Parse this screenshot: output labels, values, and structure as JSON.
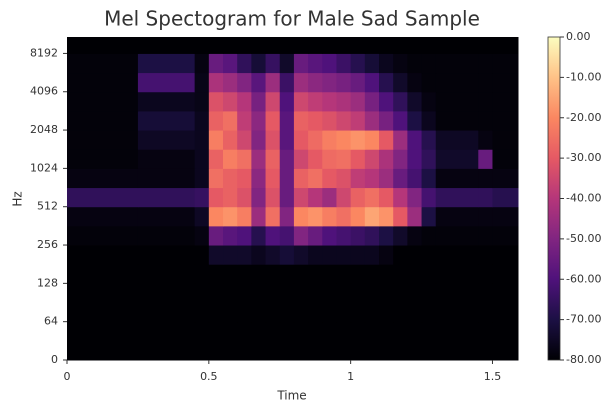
{
  "chart_data": {
    "type": "heatmap",
    "title": "Mel Spectogram for Male Sad Sample",
    "x_label": "Time",
    "y_label": "Hz",
    "xlim": [
      0,
      1.59
    ],
    "xticks": [
      0,
      0.5,
      1,
      1.5
    ],
    "ylim": [
      0,
      11025
    ],
    "yscale": "symlog",
    "linthresh": 64,
    "base": 2,
    "yticks": [
      0,
      64,
      128,
      256,
      512,
      1024,
      2048,
      4096,
      8192
    ],
    "colormap": [
      "#000004",
      "#1c1044",
      "#4f127b",
      "#812581",
      "#b5367a",
      "#e55964",
      "#fb8761",
      "#fec287",
      "#fcfdbf"
    ],
    "clim": [
      -80,
      0
    ],
    "cticks": [
      {
        "value": 0,
        "label": "0.00"
      },
      {
        "value": -10,
        "label": "-10.00"
      },
      {
        "value": -20,
        "label": "-20.00"
      },
      {
        "value": -30,
        "label": "-30.00"
      },
      {
        "value": -40,
        "label": "-40.00"
      },
      {
        "value": -50,
        "label": "-50.00"
      },
      {
        "value": -60,
        "label": "-60.00"
      },
      {
        "value": -70,
        "label": "-70.00"
      },
      {
        "value": -80,
        "label": "-80.00"
      }
    ],
    "x_edges": [
      0,
      0.25,
      0.45,
      0.5,
      0.55,
      0.6,
      0.65,
      0.7,
      0.75,
      0.8,
      0.85,
      0.9,
      0.95,
      1.0,
      1.05,
      1.1,
      1.15,
      1.2,
      1.25,
      1.3,
      1.45,
      1.5,
      1.59
    ],
    "y_edges": [
      0,
      64,
      128,
      181,
      256,
      362,
      512,
      724,
      1024,
      1448,
      2048,
      2896,
      4096,
      5793,
      8192,
      11025
    ],
    "z": [
      [
        -80,
        -80,
        -80,
        -80,
        -80,
        -80,
        -80,
        -80,
        -80,
        -80,
        -80,
        -80,
        -80,
        -80,
        -80,
        -80,
        -80,
        -80,
        -80,
        -80,
        -80,
        -80
      ],
      [
        -80,
        -80,
        -80,
        -80,
        -80,
        -80,
        -80,
        -80,
        -80,
        -80,
        -80,
        -80,
        -80,
        -80,
        -80,
        -80,
        -80,
        -80,
        -80,
        -80,
        -80,
        -80
      ],
      [
        -80,
        -80,
        -80,
        -80,
        -80,
        -80,
        -80,
        -80,
        -80,
        -80,
        -80,
        -80,
        -80,
        -80,
        -80,
        -80,
        -80,
        -80,
        -80,
        -80,
        -80,
        -80
      ],
      [
        -80,
        -80,
        -80,
        -74,
        -74,
        -74,
        -76,
        -74,
        -72,
        -74,
        -76,
        -76,
        -76,
        -76,
        -76,
        -78,
        -80,
        -80,
        -80,
        -80,
        -80,
        -80
      ],
      [
        -79,
        -79,
        -78,
        -55,
        -58,
        -60,
        -68,
        -60,
        -62,
        -50,
        -55,
        -60,
        -62,
        -64,
        -66,
        -70,
        -74,
        -78,
        -79,
        -79,
        -79,
        -79
      ],
      [
        -78,
        -78,
        -75,
        -20,
        -18,
        -22,
        -45,
        -25,
        -50,
        -20,
        -18,
        -22,
        -25,
        -20,
        -15,
        -18,
        -30,
        -45,
        -70,
        -78,
        -78,
        -78
      ],
      [
        -66,
        -66,
        -65,
        -30,
        -28,
        -32,
        -50,
        -32,
        -55,
        -35,
        -40,
        -45,
        -35,
        -28,
        -25,
        -30,
        -40,
        -50,
        -62,
        -66,
        -66,
        -68
      ],
      [
        -78,
        -78,
        -76,
        -25,
        -28,
        -30,
        -48,
        -30,
        -55,
        -28,
        -25,
        -30,
        -32,
        -38,
        -40,
        -45,
        -55,
        -62,
        -70,
        -78,
        -78,
        -78
      ],
      [
        -79,
        -78,
        -76,
        -28,
        -22,
        -25,
        -45,
        -28,
        -55,
        -35,
        -30,
        -26,
        -25,
        -30,
        -35,
        -42,
        -50,
        -60,
        -66,
        -74,
        -55,
        -79
      ],
      [
        -79,
        -75,
        -76,
        -22,
        -28,
        -35,
        -50,
        -32,
        -58,
        -30,
        -26,
        -22,
        -20,
        -18,
        -20,
        -30,
        -45,
        -60,
        -68,
        -75,
        -78,
        -79
      ],
      [
        -79,
        -72,
        -76,
        -28,
        -25,
        -38,
        -48,
        -30,
        -58,
        -28,
        -30,
        -32,
        -35,
        -38,
        -45,
        -52,
        -60,
        -70,
        -76,
        -79,
        -79,
        -79
      ],
      [
        -79,
        -76,
        -77,
        -32,
        -35,
        -40,
        -52,
        -35,
        -60,
        -35,
        -38,
        -40,
        -42,
        -45,
        -52,
        -60,
        -66,
        -74,
        -78,
        -79,
        -79,
        -79
      ],
      [
        -79,
        -62,
        -77,
        -42,
        -45,
        -50,
        -58,
        -45,
        -64,
        -45,
        -48,
        -50,
        -52,
        -55,
        -60,
        -68,
        -74,
        -78,
        -79,
        -79,
        -79,
        -79
      ],
      [
        -79,
        -70,
        -78,
        -55,
        -58,
        -66,
        -72,
        -65,
        -74,
        -55,
        -58,
        -60,
        -64,
        -68,
        -72,
        -76,
        -78,
        -79,
        -79,
        -79,
        -79,
        -79
      ],
      [
        -80,
        -80,
        -80,
        -80,
        -80,
        -80,
        -80,
        -80,
        -80,
        -80,
        -80,
        -80,
        -80,
        -80,
        -80,
        -80,
        -80,
        -80,
        -80,
        -80,
        -80,
        -80
      ]
    ]
  }
}
